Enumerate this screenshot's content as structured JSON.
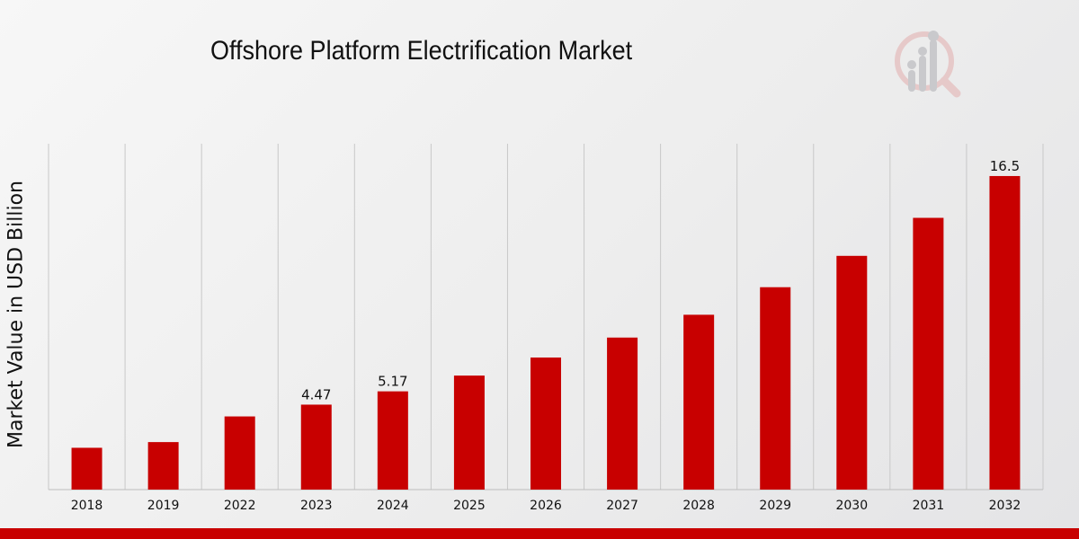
{
  "chart_data": {
    "type": "bar",
    "title": "Offshore Platform Electrification Market",
    "xlabel": "",
    "ylabel": "Market Value in USD Billion",
    "categories": [
      "2018",
      "2019",
      "2022",
      "2023",
      "2024",
      "2025",
      "2026",
      "2027",
      "2028",
      "2029",
      "2030",
      "2031",
      "2032"
    ],
    "values": [
      2.2,
      2.5,
      3.85,
      4.47,
      5.17,
      6.0,
      6.95,
      8.0,
      9.2,
      10.65,
      12.3,
      14.3,
      16.5
    ],
    "data_labels": [
      {
        "index": 3,
        "text": "4.47"
      },
      {
        "index": 4,
        "text": "5.17"
      },
      {
        "index": 12,
        "text": "16.5"
      }
    ],
    "ylim": [
      0,
      18.2
    ],
    "grid": "vertical",
    "bar_color": "#c80000"
  },
  "colors": {
    "accent": "#c80000",
    "grid": "#c8c8c8"
  },
  "logo_icon": "market-research-logo-icon"
}
